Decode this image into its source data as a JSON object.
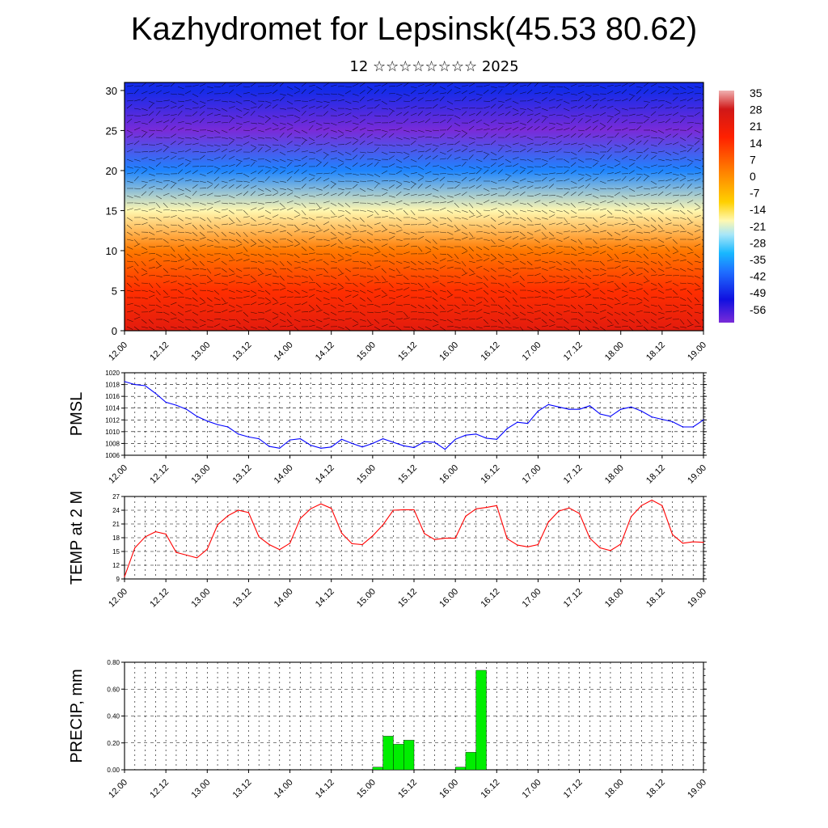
{
  "title": "Kazhydromet for Lepsinsk(45.53 80.62)",
  "subtitle": "12 ☆☆☆☆☆☆☆☆ 2025",
  "time_ticks": [
    "12.00",
    "12.12",
    "13.00",
    "13.12",
    "14.00",
    "14.12",
    "15.00",
    "15.12",
    "16.00",
    "16.12",
    "17.00",
    "17.12",
    "18.00",
    "18.12",
    "19.00"
  ],
  "chart_data": [
    {
      "type": "heatmap",
      "description": "Temperature cross-section with wind vectors",
      "x": [
        "12.00",
        "12.12",
        "13.00",
        "13.12",
        "14.00",
        "14.12",
        "15.00",
        "15.12",
        "16.00",
        "16.12",
        "17.00",
        "17.12",
        "18.00",
        "18.12",
        "19.00"
      ],
      "ylim": [
        0,
        31
      ],
      "yticks": [
        0,
        5,
        10,
        15,
        20,
        25,
        30
      ],
      "colorbar": {
        "labels": [
          "35",
          "28",
          "21",
          "14",
          "7",
          "0",
          "-7",
          "-14",
          "-21",
          "-28",
          "-35",
          "-42",
          "-49",
          "-56"
        ],
        "min": -60,
        "max": 38
      },
      "profile": {
        "levels": [
          0,
          5,
          10,
          15,
          20,
          25,
          30
        ],
        "temps": [
          28,
          20,
          10,
          -12,
          -35,
          -60,
          -48
        ]
      }
    },
    {
      "type": "line",
      "ylabel": "PMSL",
      "ylim": [
        1006,
        1020
      ],
      "yticks": [
        1006,
        1008,
        1010,
        1012,
        1014,
        1016,
        1018,
        1020
      ],
      "color": "#0000ff",
      "series": [
        {
          "x_hours": [
            0,
            3,
            6,
            9,
            12,
            15,
            18,
            21,
            24,
            27,
            30,
            33,
            36,
            39,
            42,
            45,
            48,
            51,
            54,
            57,
            60,
            63,
            66,
            69,
            72,
            75,
            78,
            81,
            84,
            87,
            90,
            93,
            96,
            99,
            102,
            105,
            108,
            111,
            114,
            117,
            120,
            123,
            126,
            129,
            132,
            135,
            138,
            141,
            144,
            147,
            150,
            153,
            156,
            159,
            162,
            165,
            168
          ],
          "values": [
            1018.5,
            1018,
            1017.8,
            1016.5,
            1015,
            1014.5,
            1013.8,
            1012.6,
            1011.8,
            1011.2,
            1010.8,
            1009.6,
            1009.1,
            1008.8,
            1007.5,
            1007.2,
            1008.6,
            1008.8,
            1007.7,
            1007.2,
            1007.4,
            1008.7,
            1008,
            1007.4,
            1008,
            1008.8,
            1008.2,
            1007.6,
            1007.3,
            1008.3,
            1008.2,
            1007,
            1008.7,
            1009.4,
            1009.6,
            1008.9,
            1008.7,
            1010.5,
            1011.6,
            1011.4,
            1013.5,
            1014.6,
            1014.2,
            1013.8,
            1013.8,
            1014.4,
            1013,
            1012.6,
            1013.8,
            1014.2,
            1013.5,
            1012.5,
            1012.1,
            1011.7,
            1010.8,
            1010.8,
            1012
          ]
        }
      ]
    },
    {
      "type": "line",
      "ylabel": "TEMP at 2 M",
      "ylim": [
        9,
        27
      ],
      "yticks": [
        9,
        12,
        15,
        18,
        21,
        24,
        27
      ],
      "color": "#ff0000",
      "series": [
        {
          "x_hours": [
            0,
            3,
            6,
            9,
            12,
            15,
            18,
            21,
            24,
            27,
            30,
            33,
            36,
            39,
            42,
            45,
            48,
            51,
            54,
            57,
            60,
            63,
            66,
            69,
            72,
            75,
            78,
            81,
            84,
            87,
            90,
            93,
            96,
            99,
            102,
            105,
            108,
            111,
            114,
            117,
            120,
            123,
            126,
            129,
            132,
            135,
            138,
            141,
            144,
            147,
            150,
            153,
            156,
            159,
            162,
            165,
            168
          ],
          "values": [
            9.5,
            15.8,
            18.2,
            19.3,
            18.8,
            14.8,
            14.2,
            13.6,
            15.5,
            20.8,
            22.8,
            24,
            23.5,
            18.2,
            16.5,
            15.4,
            16.8,
            22.2,
            24.3,
            25.4,
            24.4,
            19,
            16.7,
            16.5,
            18.4,
            20.8,
            24,
            24.1,
            24.1,
            18.9,
            17.6,
            17.9,
            17.9,
            22.7,
            24.3,
            24.6,
            25,
            17.8,
            16.4,
            16,
            16.5,
            21.4,
            23.8,
            24.5,
            23.3,
            17.9,
            15.8,
            15.2,
            16.6,
            22.6,
            25,
            26.2,
            25,
            18.7,
            16.8,
            17.1,
            17
          ]
        }
      ]
    },
    {
      "type": "bar",
      "ylabel": "PRECIP, mm",
      "ylim": [
        0,
        0.8
      ],
      "yticks": [
        "0.00",
        "0.20",
        "0.40",
        "0.60",
        "0.80"
      ],
      "color": "#00ee00",
      "x_hours": [
        72,
        75,
        78,
        81,
        84,
        96,
        99,
        102
      ],
      "values": [
        0.02,
        0.25,
        0.19,
        0.22,
        0.0,
        0.02,
        0.13,
        0.74
      ]
    }
  ]
}
